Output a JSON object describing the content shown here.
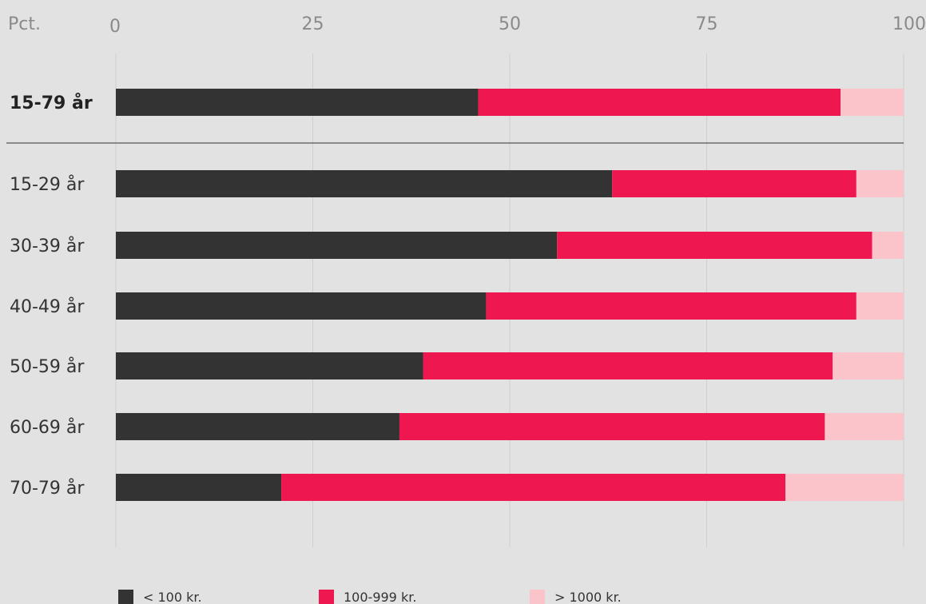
{
  "chart_data": {
    "type": "bar",
    "orientation": "horizontal",
    "stacked": true,
    "unit_label": "Pct.",
    "xlim": [
      0,
      100
    ],
    "x_ticks": [
      0,
      25,
      50,
      75,
      100
    ],
    "grid": true,
    "legend_position": "bottom",
    "categories": [
      "15-79 år",
      "15-29 år",
      "30-39 år",
      "40-49 år",
      "50-59 år",
      "60-69 år",
      "70-79 år"
    ],
    "emphasized_category": "15-79 år",
    "series": [
      {
        "name": "< 100 kr.",
        "color": "#333333",
        "values": [
          46,
          63,
          56,
          47,
          39,
          36,
          21
        ]
      },
      {
        "name": "100-999 kr.",
        "color": "#ef174f",
        "values": [
          46,
          31,
          40,
          47,
          52,
          54,
          64
        ]
      },
      {
        "name": "> 1000 kr.",
        "color": "#fbc4cb",
        "values": [
          8,
          6,
          4,
          6,
          9,
          10,
          15
        ]
      }
    ]
  }
}
